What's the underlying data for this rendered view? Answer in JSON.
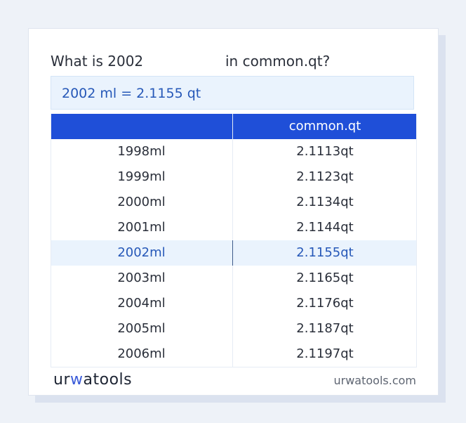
{
  "question": {
    "part1": "What is 2002",
    "part2": "in common.qt?"
  },
  "answer": "2002 ml = 2.1155 qt",
  "table": {
    "headers": [
      "",
      "common.qt"
    ],
    "rows": [
      {
        "ml": "1998ml",
        "qt": "2.1113qt"
      },
      {
        "ml": "1999ml",
        "qt": "2.1123qt"
      },
      {
        "ml": "2000ml",
        "qt": "2.1134qt"
      },
      {
        "ml": "2001ml",
        "qt": "2.1144qt"
      },
      {
        "ml": "2002ml",
        "qt": "2.1155qt"
      },
      {
        "ml": "2003ml",
        "qt": "2.1165qt"
      },
      {
        "ml": "2004ml",
        "qt": "2.1176qt"
      },
      {
        "ml": "2005ml",
        "qt": "2.1187qt"
      },
      {
        "ml": "2006ml",
        "qt": "2.1197qt"
      }
    ],
    "highlighted_row": "2002ml"
  },
  "footer": {
    "logo": {
      "part1": "ur",
      "part2": "w",
      "part3": "atools"
    },
    "url": "urwatools.com"
  },
  "colors": {
    "header_bg": "#1f4fd8",
    "highlight_bg": "#eaf3fd",
    "highlight_text": "#2658b8"
  }
}
